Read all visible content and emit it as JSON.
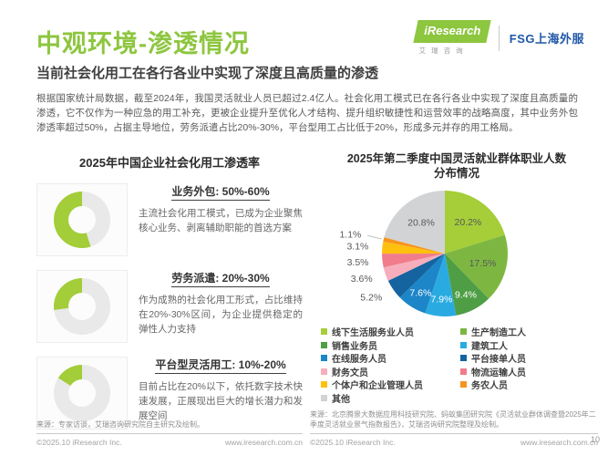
{
  "header": {
    "title": "中观环境-渗透情况",
    "subtitle": "当前社会化用工在各行各业中实现了深度且高质量的渗透",
    "logo": {
      "brand": "iResearch",
      "brand_sub": "艾瑞咨询",
      "partner": "FSG上海外服"
    }
  },
  "colors": {
    "accent_green": "#8dc63f",
    "fsg_blue": "#2057a7"
  },
  "intro": "根据国家统计局数据，截至2024年，我国灵活就业人员已超过2.4亿人。社会化用工模式已在各行各业中实现了深度且高质量的渗透，它不仅作为一种应急的用工补充，更被企业提升至优化人才结构、提升组织敏捷性和运营效率的战略高度，其中业务外包渗透率超过50%，占据主导地位，劳务派遣占比20%-30%，平台型用工占比低于20%，形成多元并存的用工格局。",
  "left_panel": {
    "title": "2025年中国企业社会化用工渗透率",
    "items": [
      {
        "label": "业务外包: 50%-60%",
        "desc": "主流社会化用工模式，已成为企业聚焦核心业务、剥离辅助职能的首选方案"
      },
      {
        "label": "劳务派遣: 20%-30%",
        "desc": "作为成熟的社会化用工形式，占比维持在20%-30%区间，为企业提供稳定的弹性人力支持"
      },
      {
        "label": "平台型灵活用工: 10%-20%",
        "desc": "目前占比在20%以下，依托数字技术快速发展，正展现出巨大的增长潜力和发展空间"
      }
    ],
    "source": "来源：专家访谈，艾瑞咨询研究院自主研究及绘制。",
    "copyright": "©2025.10 iResearch Inc.",
    "site": "www.iresearch.com.cn"
  },
  "right_panel": {
    "title_line1": "2025年第二季度中国灵活就业群体职业人数",
    "title_line2": "分布情况",
    "source": "来源：北京腾景大数据应用科技研究院、蚂蚁集团研究院《灵活就业群体调查暨2025年二季度灵活就业景气指数报告》，艾瑞咨询研究院整理及绘制。",
    "copyright": "©2025.10 iResearch Inc.",
    "site": "www.iresearch.com.cn",
    "page_number": "10"
  },
  "chart_data": [
    {
      "type": "pie",
      "title": "2025年第二季度中国灵活就业群体职业人数分布情况",
      "unit": "%",
      "start_angle": "top",
      "direction": "clockwise",
      "legend_position": "bottom",
      "labels": "percent",
      "slices": [
        {
          "label": "线下生活服务业人员",
          "value": 20.2,
          "color": "#a5ce39"
        },
        {
          "label": "生产制造工人",
          "value": 17.5,
          "color": "#7db741"
        },
        {
          "label": "销售业务员",
          "value": 9.4,
          "color": "#4f9e45"
        },
        {
          "label": "建筑工人",
          "value": 7.9,
          "color": "#29abe2"
        },
        {
          "label": "在线服务人员",
          "value": 7.6,
          "color": "#1c86c8"
        },
        {
          "label": "平台接单人员",
          "value": 5.2,
          "color": "#15649f"
        },
        {
          "label": "财务文员",
          "value": 3.6,
          "color": "#f6aebc"
        },
        {
          "label": "物流运输人员",
          "value": 3.5,
          "color": "#f07c8c"
        },
        {
          "label": "个体户和企业管理人员",
          "value": 3.1,
          "color": "#fdc00f"
        },
        {
          "label": "务农人员",
          "value": 1.1,
          "color": "#f7941d"
        },
        {
          "label": "其他",
          "value": 20.8,
          "color": "#d2d3d5"
        }
      ]
    },
    {
      "type": "donut-set",
      "title": "2025年中国企业社会化用工渗透率",
      "colors": {
        "fill": "#a3cd39",
        "track": "#e9e9e9"
      },
      "gauges": [
        {
          "label": "业务外包",
          "range": "50%-60%",
          "green_pct": 55
        },
        {
          "label": "劳务派遣",
          "range": "20%-30%",
          "green_pct": 27
        },
        {
          "label": "平台型灵活用工",
          "range": "10%-20%",
          "green_pct": 16
        }
      ]
    }
  ]
}
